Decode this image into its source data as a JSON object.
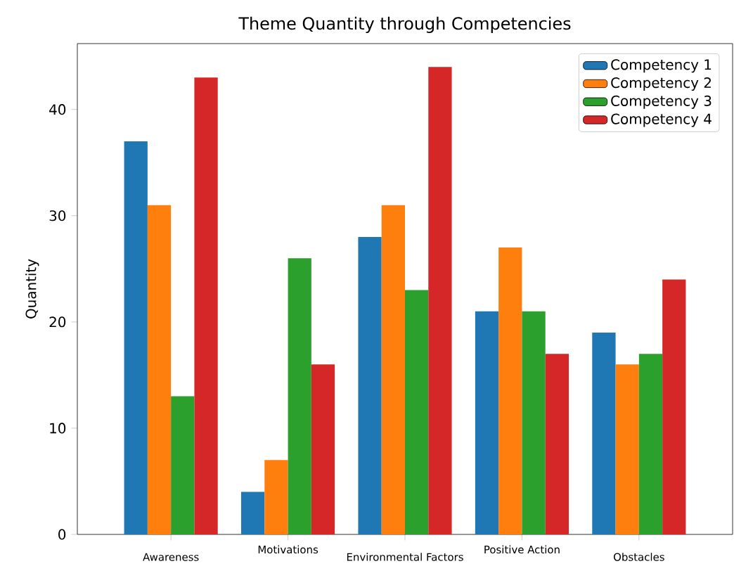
{
  "chart_data": {
    "type": "bar",
    "title": "Theme Quantity through Competencies",
    "ylabel": "Quantity",
    "categories": [
      "Awareness",
      "Motivations",
      "Environmental Factors",
      "Positive Action",
      "Obstacles"
    ],
    "series": [
      {
        "name": "Competency 1",
        "color": "#1f77b4",
        "values": [
          37,
          4,
          28,
          21,
          19
        ]
      },
      {
        "name": "Competency 2",
        "color": "#ff7f0e",
        "values": [
          31,
          7,
          31,
          27,
          16
        ]
      },
      {
        "name": "Competency 3",
        "color": "#2ca02c",
        "values": [
          13,
          26,
          23,
          21,
          17
        ]
      },
      {
        "name": "Competency 4",
        "color": "#d62728",
        "values": [
          43,
          16,
          44,
          17,
          24
        ]
      }
    ],
    "ylim": [
      0,
      46.2
    ],
    "yticks": [
      0,
      10,
      20,
      30,
      40
    ],
    "legend": "top right"
  }
}
